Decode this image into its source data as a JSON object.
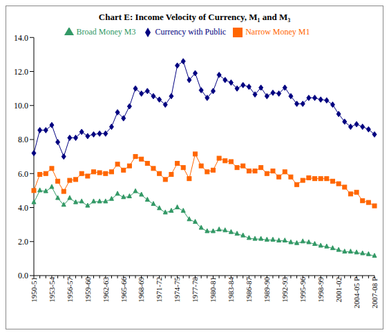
{
  "chart_data": {
    "type": "line",
    "title": "Chart E: Income Velocity of Currency, M₁ and M₃",
    "categories": [
      "1950-51",
      null,
      null,
      "1953-54",
      null,
      null,
      "1956-57",
      null,
      null,
      "1959-60",
      null,
      null,
      "1962-63",
      null,
      null,
      "1965-66",
      null,
      null,
      "1968-69",
      null,
      null,
      "1971-72",
      null,
      null,
      "1974-75",
      null,
      null,
      "1977-78",
      null,
      null,
      "1980-81",
      null,
      null,
      "1983-84",
      null,
      null,
      "1986-87",
      null,
      null,
      "1989-90",
      null,
      null,
      "1992-93",
      null,
      null,
      "1995-96",
      null,
      null,
      "1998-99",
      null,
      null,
      "2001-02",
      null,
      null,
      "2004-05 P",
      null,
      null,
      "2007-08 P"
    ],
    "series": [
      {
        "name": "Currency with Public",
        "color": "#000080",
        "marker": "diamond",
        "values": [
          7.2,
          8.55,
          8.55,
          8.85,
          7.85,
          7.0,
          8.1,
          8.1,
          8.45,
          8.2,
          8.3,
          8.35,
          8.35,
          8.75,
          9.6,
          9.25,
          9.95,
          11.0,
          10.7,
          10.85,
          10.55,
          10.35,
          10.05,
          10.55,
          12.35,
          12.6,
          11.5,
          11.9,
          10.9,
          10.45,
          10.85,
          11.8,
          11.5,
          11.35,
          11.0,
          11.2,
          11.1,
          10.65,
          11.05,
          10.55,
          10.75,
          10.7,
          11.05,
          10.55,
          10.1,
          10.1,
          10.45,
          10.45,
          10.35,
          10.3,
          10.05,
          9.5,
          9.05,
          8.75,
          8.9,
          8.75,
          8.6,
          8.3
        ]
      },
      {
        "name": "Narrow Money M1",
        "color": "#FF6600",
        "marker": "square",
        "values": [
          5.0,
          5.95,
          6.0,
          6.3,
          5.55,
          4.95,
          5.6,
          5.65,
          6.0,
          5.85,
          6.1,
          6.05,
          6.0,
          6.1,
          6.55,
          6.2,
          6.45,
          7.0,
          6.85,
          6.6,
          6.3,
          6.0,
          5.65,
          5.95,
          6.6,
          6.35,
          5.7,
          7.15,
          6.45,
          6.1,
          6.2,
          6.9,
          6.75,
          6.7,
          6.35,
          6.45,
          6.15,
          6.15,
          6.35,
          6.0,
          6.15,
          5.8,
          6.1,
          5.8,
          5.35,
          5.6,
          5.75,
          5.7,
          5.7,
          5.7,
          5.55,
          5.4,
          5.2,
          4.8,
          4.9,
          4.4,
          4.3,
          4.1
        ]
      },
      {
        "name": "Broad Money M3",
        "color": "#339966",
        "marker": "triangle",
        "values": [
          4.3,
          5.0,
          4.95,
          5.2,
          4.55,
          4.15,
          4.55,
          4.3,
          4.35,
          4.1,
          4.35,
          4.35,
          4.35,
          4.5,
          4.8,
          4.6,
          4.65,
          4.95,
          4.75,
          4.45,
          4.2,
          3.95,
          3.7,
          3.8,
          4.0,
          3.8,
          3.3,
          3.15,
          2.8,
          2.6,
          2.6,
          2.7,
          2.65,
          2.55,
          2.45,
          2.35,
          2.2,
          2.15,
          2.15,
          2.1,
          2.1,
          2.05,
          2.05,
          1.95,
          1.9,
          2.0,
          1.95,
          1.85,
          1.75,
          1.7,
          1.6,
          1.5,
          1.4,
          1.4,
          1.35,
          1.3,
          1.25,
          1.15
        ]
      }
    ],
    "ylim": [
      0,
      14
    ],
    "yticks": [
      {
        "value": 0,
        "label": "0.0"
      },
      {
        "value": 2,
        "label": "2.0"
      },
      {
        "value": 4,
        "label": "4.0"
      },
      {
        "value": 6,
        "label": "6.0"
      },
      {
        "value": 8,
        "label": "8.0"
      },
      {
        "value": 10,
        "label": "10.0"
      },
      {
        "value": 12,
        "label": "12.0"
      },
      {
        "value": 14,
        "label": "14.0"
      }
    ],
    "grid": false,
    "legend": "top"
  }
}
